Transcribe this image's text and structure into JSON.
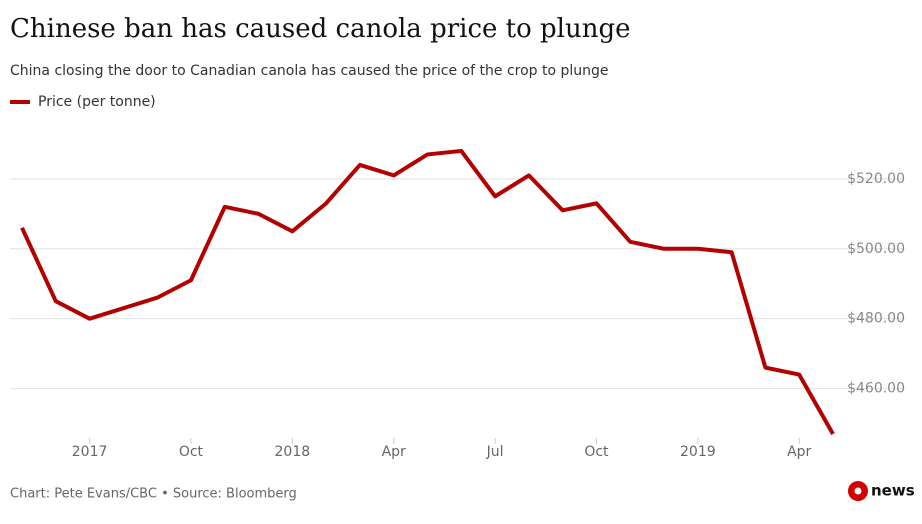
{
  "chart_data": {
    "type": "line",
    "title": "Chinese ban has caused canola price to plunge",
    "subtitle": "China closing the door to Canadian canola has caused the price of the crop to plunge",
    "x": [
      "2017-05",
      "2017-06",
      "2017-07",
      "2017-08",
      "2017-09",
      "2017-10",
      "2017-11",
      "2017-12",
      "2018-01",
      "2018-02",
      "2018-03",
      "2018-04",
      "2018-05",
      "2018-06",
      "2018-07",
      "2018-08",
      "2018-09",
      "2018-10",
      "2018-11",
      "2018-12",
      "2019-01",
      "2019-02",
      "2019-03",
      "2019-04",
      "2019-05"
    ],
    "series": [
      {
        "name": "Price (per tonne)",
        "color": "#b30000",
        "values": [
          506,
          485,
          480,
          483,
          486,
          491,
          512,
          510,
          505,
          513,
          524,
          521,
          527,
          528,
          515,
          521,
          511,
          513,
          502,
          500,
          500,
          499,
          466,
          464,
          447
        ]
      }
    ],
    "xlim": [
      "2017-05",
      "2019-05"
    ],
    "xticks": [
      {
        "value": "2017-07",
        "label": "2017"
      },
      {
        "value": "2017-10",
        "label": "Oct"
      },
      {
        "value": "2018-01",
        "label": "2018"
      },
      {
        "value": "2018-04",
        "label": "Apr"
      },
      {
        "value": "2018-07",
        "label": "Jul"
      },
      {
        "value": "2018-10",
        "label": "Oct"
      },
      {
        "value": "2019-01",
        "label": "2019"
      },
      {
        "value": "2019-04",
        "label": "Apr"
      }
    ],
    "ylim": [
      445,
      540
    ],
    "yticks": [
      {
        "value": 460,
        "label": "$460.00"
      },
      {
        "value": 480,
        "label": "$480.00"
      },
      {
        "value": 500,
        "label": "$500.00"
      },
      {
        "value": 520,
        "label": "$520.00"
      }
    ],
    "grid": true,
    "source": "Chart: Pete Evans/CBC • Source: Bloomberg"
  },
  "logo": "news"
}
